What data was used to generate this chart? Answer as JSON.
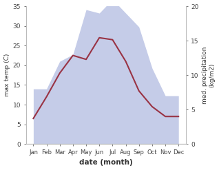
{
  "months": [
    "Jan",
    "Feb",
    "Mar",
    "Apr",
    "May",
    "Jun",
    "Jul",
    "Aug",
    "Sep",
    "Oct",
    "Nov",
    "Dec"
  ],
  "max_temp": [
    6.5,
    12.0,
    18.0,
    22.5,
    21.5,
    27.0,
    26.5,
    21.0,
    13.5,
    9.5,
    7.0,
    7.0
  ],
  "precipitation": [
    8.0,
    8.0,
    12.0,
    13.0,
    19.5,
    19.0,
    21.0,
    19.0,
    17.0,
    11.0,
    7.0,
    7.0
  ],
  "temp_color": "#993344",
  "precip_fill_color": "#c5cce8",
  "ylabel_left": "max temp (C)",
  "ylabel_right": "med. precipitation\n(kg/m2)",
  "xlabel": "date (month)",
  "ylim_left": [
    0,
    35
  ],
  "ylim_right": [
    0,
    20
  ],
  "yticks_left": [
    0,
    5,
    10,
    15,
    20,
    25,
    30,
    35
  ],
  "yticks_right": [
    0,
    5,
    10,
    15,
    20
  ],
  "spine_color": "#bbbbbb",
  "background_color": "#ffffff"
}
